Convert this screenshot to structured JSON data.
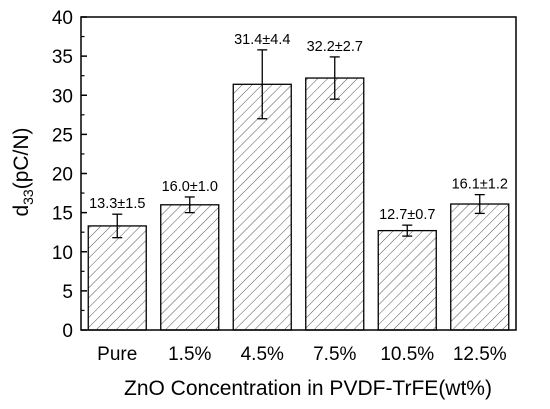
{
  "chart_data": {
    "type": "bar",
    "categories": [
      "Pure",
      "1.5%",
      "4.5%",
      "7.5%",
      "10.5%",
      "12.5%"
    ],
    "values": [
      13.3,
      16.0,
      31.4,
      32.2,
      12.7,
      16.1
    ],
    "errors": [
      1.5,
      1.0,
      4.4,
      2.7,
      0.7,
      1.2
    ],
    "data_labels": [
      "13.3±1.5",
      "16.0±1.0",
      "31.4±4.4",
      "32.2±2.7",
      "12.7±0.7",
      "16.1±1.2"
    ],
    "xlabel": "ZnO Concentration in PVDF-TrFE(wt%)",
    "ylabel_main": "d",
    "ylabel_sub": "33",
    "ylabel_unit": "(pC/N)",
    "ylim": [
      0,
      40
    ],
    "yticks": [
      0,
      5,
      10,
      15,
      20,
      25,
      30,
      35,
      40
    ],
    "bar_fill": "hatched-diagonal",
    "bar_color": "#000000",
    "grid": false,
    "legend": "none"
  }
}
